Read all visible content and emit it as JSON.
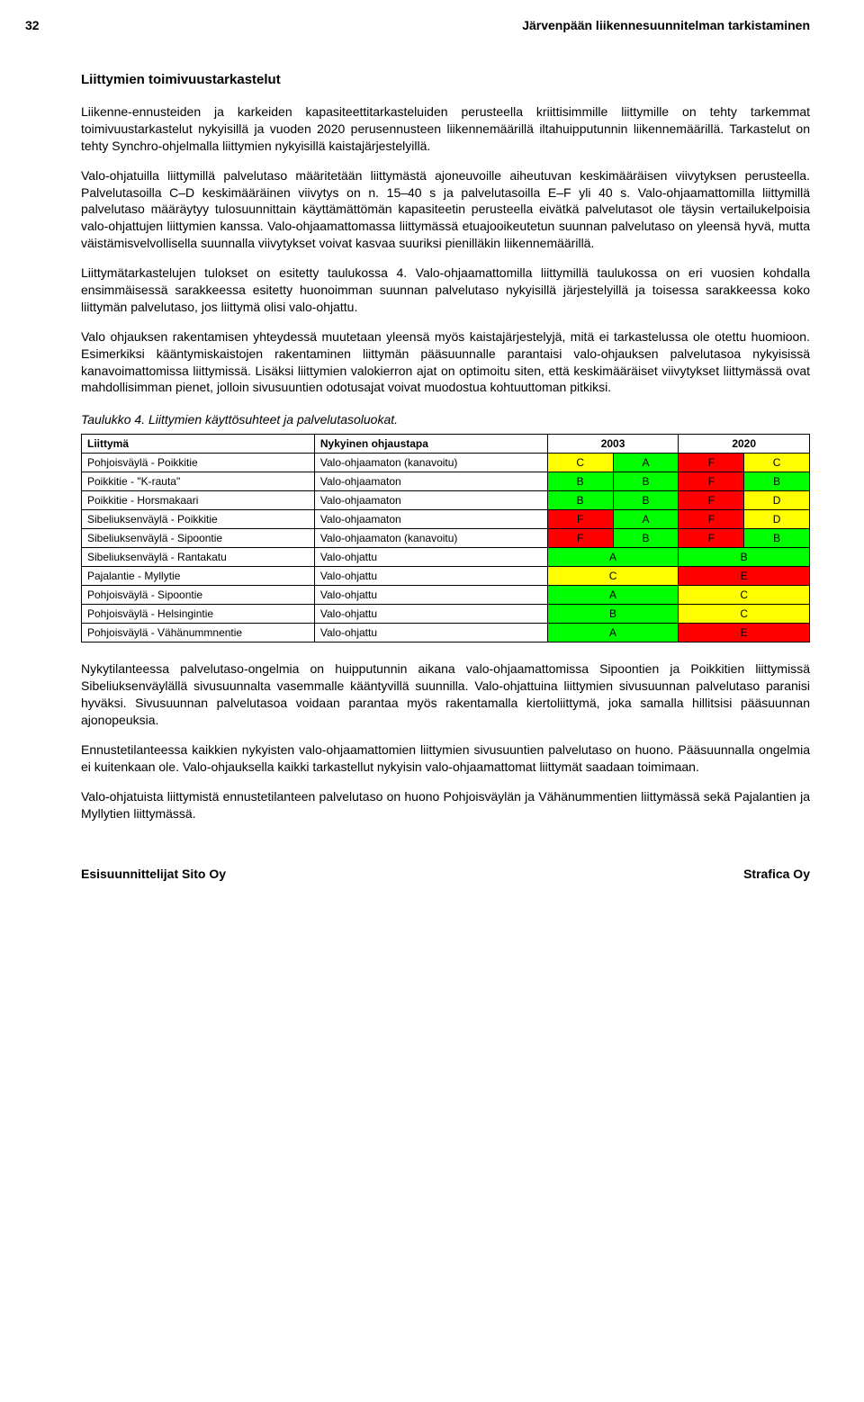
{
  "page": {
    "number": "32",
    "header": "Järvenpään liikennesuunnitelman tarkistaminen"
  },
  "section_title": "Liittymien toimivuustarkastelut",
  "paragraphs": {
    "p1": "Liikenne-ennusteiden ja karkeiden kapasiteettitarkasteluiden perusteella kriittisimmille liittymille on tehty tarkemmat toimivuustarkastelut nykyisillä ja vuoden 2020 perusennusteen liikennemäärillä iltahuipputunnin liikennemäärillä. Tarkastelut on tehty Synchro-ohjelmalla liittymien nykyisillä kaistajärjestelyillä.",
    "p2": "Valo-ohjatuilla liittymillä palvelutaso määritetään liittymästä ajoneuvoille aiheutuvan keskimääräisen viivytyksen perusteella. Palvelutasoilla C–D keskimääräinen viivytys on n. 15–40 s ja palvelutasoilla E–F yli 40 s. Valo-ohjaamattomilla liittymillä palvelutaso määräytyy tulosuunnittain käyttämättömän kapasiteetin perusteella eivätkä palvelutasot ole täysin vertailukelpoisia valo-ohjattujen liittymien kanssa. Valo-ohjaamattomassa liittymässä etuajooikeutetun suunnan palvelutaso on yleensä hyvä, mutta väistämisvelvollisella suunnalla viivytykset voivat kasvaa suuriksi pienilläkin liikennemäärillä.",
    "p3": "Liittymätarkastelujen tulokset on esitetty taulukossa 4. Valo-ohjaamattomilla liittymillä taulukossa on eri vuosien kohdalla ensimmäisessä sarakkeessa esitetty huonoimman suunnan palvelutaso nykyisillä järjestelyillä ja toisessa sarakkeessa koko liittymän palvelutaso, jos liittymä olisi valo-ohjattu.",
    "p4": "Valo ohjauksen rakentamisen yhteydessä muutetaan yleensä myös kaistajärjestelyjä, mitä ei tarkastelussa ole otettu huomioon. Esimerkiksi kääntymiskaistojen rakentaminen liittymän pääsuunnalle parantaisi valo-ohjauksen palvelutasoa nykyisissä kanavoimattomissa liittymissä. Lisäksi liittymien valokierron ajat on optimoitu siten, että keskimääräiset viivytykset liittymässä ovat mahdollisimman pienet, jolloin sivusuuntien odotusajat voivat muodostua kohtuuttoman pitkiksi.",
    "p5": "Nykytilanteessa palvelutaso-ongelmia on huipputunnin aikana valo-ohjaamattomissa Sipoontien ja Poikkitien liittymissä Sibeliuksenväylällä sivusuunnalta vasemmalle kääntyvillä suunnilla. Valo-ohjattuina liittymien sivusuunnan palvelutaso paranisi hyväksi. Sivusuunnan palvelutasoa voidaan parantaa myös rakentamalla kiertoliittymä, joka samalla hillitsisi pääsuunnan ajonopeuksia.",
    "p6": "Ennustetilanteessa kaikkien nykyisten valo-ohjaamattomien liittymien sivusuuntien palvelutaso on huono. Pääsuunnalla ongelmia ei kuitenkaan ole. Valo-ohjauksella kaikki tarkastellut nykyisin valo-ohjaamattomat liittymät saadaan toimimaan.",
    "p7": "Valo-ohjatuista liittymistä ennustetilanteen palvelutaso on huono Pohjoisväylän ja Vähänummentien liittymässä sekä Pajalantien ja Myllytien liittymässä."
  },
  "table_caption": "Taulukko 4.   Liittymien käyttösuhteet ja palvelutasoluokat.",
  "table": {
    "columns": [
      "Liittymä",
      "Nykyinen ohjaustapa",
      "2003",
      "2020"
    ],
    "col_widths": [
      "32%",
      "32%",
      "18%",
      "18%"
    ],
    "grade_colors": {
      "A": "#00ff00",
      "B": "#00ff00",
      "C": "#ffff00",
      "D": "#ffff00",
      "E": "#ff0000",
      "F": "#ff0000"
    },
    "rows": [
      {
        "liittyma": "Pohjoisväylä - Poikkitie",
        "tapa": "Valo-ohjaamaton (kanavoitu)",
        "g": [
          "C",
          "A",
          "F",
          "C"
        ]
      },
      {
        "liittyma": "Poikkitie - \"K-rauta\"",
        "tapa": "Valo-ohjaamaton",
        "g": [
          "B",
          "B",
          "F",
          "B"
        ]
      },
      {
        "liittyma": "Poikkitie - Horsmakaari",
        "tapa": "Valo-ohjaamaton",
        "g": [
          "B",
          "B",
          "F",
          "D"
        ]
      },
      {
        "liittyma": "Sibeliuksenväylä - Poikkitie",
        "tapa": "Valo-ohjaamaton",
        "g": [
          "F",
          "A",
          "F",
          "D"
        ]
      },
      {
        "liittyma": "Sibeliuksenväylä - Sipoontie",
        "tapa": "Valo-ohjaamaton (kanavoitu)",
        "g": [
          "F",
          "B",
          "F",
          "B"
        ]
      },
      {
        "liittyma": "Sibeliuksenväylä - Rantakatu",
        "tapa": "Valo-ohjattu",
        "g": [
          "A",
          "B"
        ],
        "span2": true
      },
      {
        "liittyma": "Pajalantie - Myllytie",
        "tapa": "Valo-ohjattu",
        "g": [
          "C",
          "E"
        ],
        "span2": true
      },
      {
        "liittyma": "Pohjoisväylä - Sipoontie",
        "tapa": "Valo-ohjattu",
        "g": [
          "A",
          "C"
        ],
        "span2": true
      },
      {
        "liittyma": "Pohjoisväylä - Helsingintie",
        "tapa": "Valo-ohjattu",
        "g": [
          "B",
          "C"
        ],
        "span2": true
      },
      {
        "liittyma": "Pohjoisväylä - Vähänummnentie",
        "tapa": "Valo-ohjattu",
        "g": [
          "A",
          "E"
        ],
        "span2": true
      }
    ]
  },
  "footer": {
    "left": "Esisuunnittelijat Sito Oy",
    "right": "Strafica Oy"
  }
}
